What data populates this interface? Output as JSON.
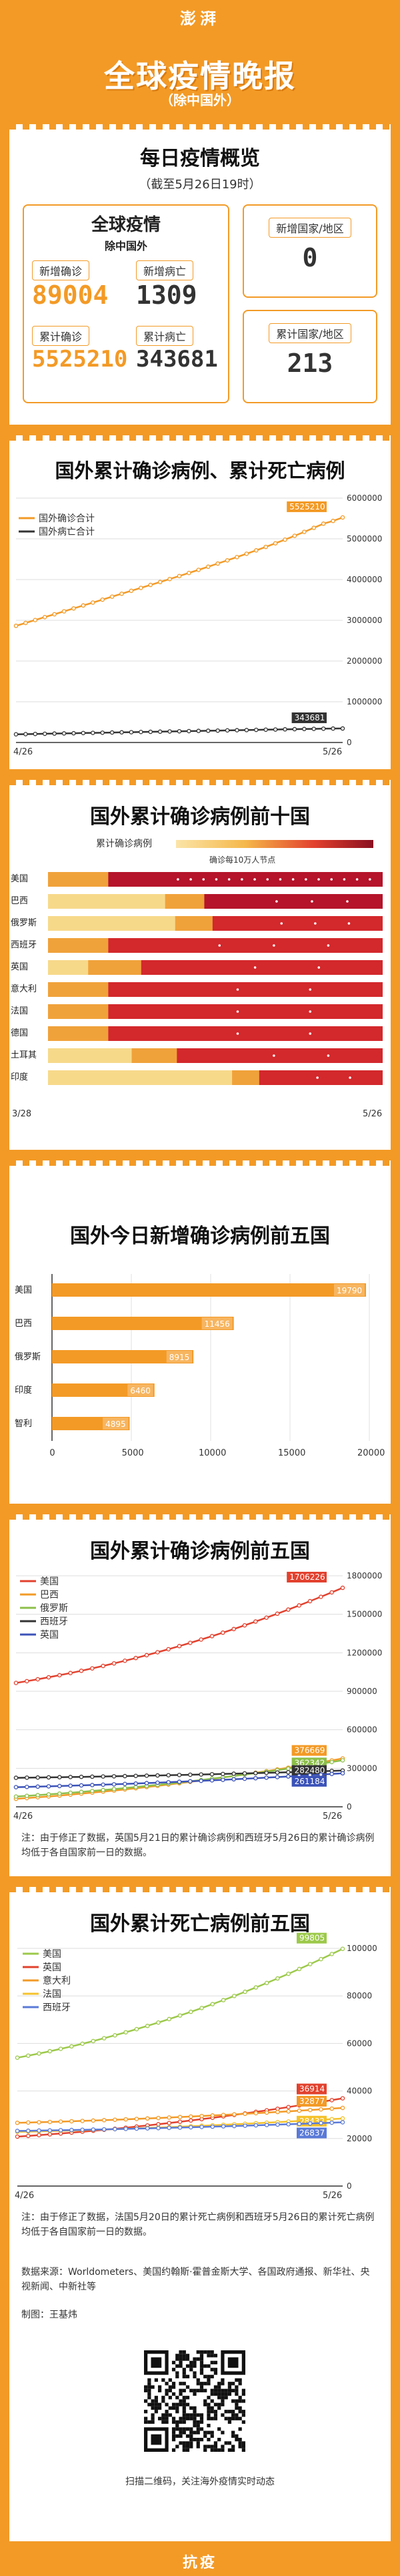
{
  "header": {
    "logo": "澎湃",
    "title": "全球疫情晚报",
    "subtitle": "（除中国外）"
  },
  "overview": {
    "title": "每日疫情概览",
    "date": "（截至5月26日19时）",
    "box_title": "全球疫情",
    "box_subtitle": "除中国外",
    "new_confirmed_label": "新增确诊",
    "new_confirmed": "89004",
    "new_deaths_label": "新增病亡",
    "new_deaths": "1309",
    "total_confirmed_label": "累计确诊",
    "total_confirmed": "5525210",
    "total_deaths_label": "累计病亡",
    "total_deaths": "343681",
    "new_countries_label": "新增国家/地区",
    "new_countries": "0",
    "total_countries_label": "累计国家/地区",
    "total_countries": "213"
  },
  "colors": {
    "orange": "#f39a26",
    "dark": "#333333"
  },
  "chart1": {
    "title": "国外累计确诊病例、累计死亡病例",
    "chart_data": {
      "type": "line",
      "x_start": "4/26",
      "x_end": "5/26",
      "ylim": [
        0,
        6000000
      ],
      "yticks": [
        "0",
        "1000000",
        "2000000",
        "3000000",
        "4000000",
        "5000000",
        "6000000"
      ],
      "series": [
        {
          "name": "国外确诊合计",
          "color": "#f39a26",
          "values": [
            2864000,
            2935000,
            3006000,
            3078000,
            3148000,
            3220000,
            3292000,
            3364000,
            3435000,
            3507000,
            3580000,
            3652000,
            3724000,
            3796000,
            3868000,
            3940000,
            4013000,
            4087000,
            4162000,
            4238000,
            4315000,
            4393000,
            4472000,
            4552000,
            4634000,
            4717000,
            4802000,
            4890000,
            4980000,
            5074000,
            5171000,
            5270000,
            5372000,
            5440000,
            5525210
          ],
          "end_label": "5525210"
        },
        {
          "name": "国外病亡合计",
          "color": "#333333",
          "values": [
            201000,
            205000,
            210000,
            214000,
            219000,
            223000,
            227000,
            232000,
            236000,
            240000,
            245000,
            249000,
            253000,
            258000,
            262000,
            266000,
            271000,
            275000,
            279000,
            284000,
            288000,
            292000,
            297000,
            301000,
            305000,
            310000,
            314000,
            318000,
            323000,
            327000,
            331000,
            335000,
            339000,
            342000,
            343681
          ],
          "end_label": "343681"
        }
      ]
    }
  },
  "chart2": {
    "title": "国外累计确诊病例前十国",
    "legend_label": "累计确诊病例",
    "legend_note": "确诊每10万人节点",
    "chart_data": {
      "type": "heatmap",
      "x_start": "3/28",
      "x_end": "5/26",
      "categories": [
        "美国",
        "巴西",
        "俄罗斯",
        "西班牙",
        "英国",
        "意大利",
        "法国",
        "德国",
        "土耳其",
        "印度"
      ],
      "onset_fraction": [
        0.0,
        0.35,
        0.38,
        0.0,
        0.12,
        0.0,
        0.0,
        0.0,
        0.25,
        0.55
      ]
    }
  },
  "chart3": {
    "title": "国外今日新增确诊病例前五国",
    "chart_data": {
      "type": "bar",
      "categories": [
        "美国",
        "巴西",
        "俄罗斯",
        "印度",
        "智利"
      ],
      "values": [
        19790,
        11456,
        8915,
        6460,
        4895
      ],
      "labels": [
        "19790",
        "11456",
        "8915",
        "6460",
        "4895"
      ],
      "xlim": [
        0,
        20000
      ],
      "xticks": [
        "0",
        "5000",
        "10000",
        "15000",
        "20000"
      ]
    }
  },
  "chart4": {
    "title": "国外累计确诊病例前五国",
    "note": "注：由于修正了数据，英国5月21日的累计确诊病例和西班牙5月26日的累计确诊病例均低于各自国家前一日的数据。",
    "chart_data": {
      "type": "line",
      "x_start": "4/26",
      "x_end": "5/26",
      "ylim": [
        0,
        1800000
      ],
      "yticks": [
        "0",
        "300000",
        "600000",
        "900000",
        "1200000",
        "1500000",
        "1800000"
      ],
      "series": [
        {
          "name": "美国",
          "color": "#e2412e",
          "start": 965000,
          "end": 1706226,
          "end_label": "1706226"
        },
        {
          "name": "巴西",
          "color": "#f39a26",
          "start": 62000,
          "end": 376669,
          "end_label": "376669"
        },
        {
          "name": "俄罗斯",
          "color": "#8cbf4a",
          "start": 80000,
          "end": 362342,
          "end_label": "362342"
        },
        {
          "name": "西班牙",
          "color": "#333333",
          "start": 226000,
          "end": 282480,
          "end_label": "282480"
        },
        {
          "name": "英国",
          "color": "#3b52b8",
          "start": 153000,
          "end": 261184,
          "end_label": "261184"
        }
      ]
    }
  },
  "chart5": {
    "title": "国外累计死亡病例前五国",
    "note": "注：由于修正了数据，法国5月20日的累计死亡病例和西班牙5月26日的累计死亡病例均低于各自国家前一日的数据。",
    "chart_data": {
      "type": "line",
      "x_start": "4/26",
      "x_end": "5/26",
      "ylim": [
        0,
        100000
      ],
      "yticks": [
        "0",
        "20000",
        "40000",
        "60000",
        "80000",
        "100000"
      ],
      "series": [
        {
          "name": "美国",
          "color": "#9cc94a",
          "start": 54000,
          "end": 99805,
          "end_label": "99805"
        },
        {
          "name": "英国",
          "color": "#e2412e",
          "start": 20800,
          "end": 36914,
          "end_label": "36914"
        },
        {
          "name": "意大利",
          "color": "#f39a26",
          "start": 26600,
          "end": 32877,
          "end_label": "32877"
        },
        {
          "name": "法国",
          "color": "#f5c22b",
          "start": 22800,
          "end": 28432,
          "end_label": "28432"
        },
        {
          "name": "西班牙",
          "color": "#5a7ad8",
          "start": 23200,
          "end": 26837,
          "end_label": "26837"
        }
      ]
    }
  },
  "footer": {
    "sources": "数据来源：Worldometers、美国约翰斯·霍普金斯大学、各国政府通报、新华社、央视新闻、中新社等",
    "author": "制图：王基炜",
    "qr_caption": "扫描二维码，关注海外疫情实时动态",
    "bottom_tag": "抗疫"
  }
}
